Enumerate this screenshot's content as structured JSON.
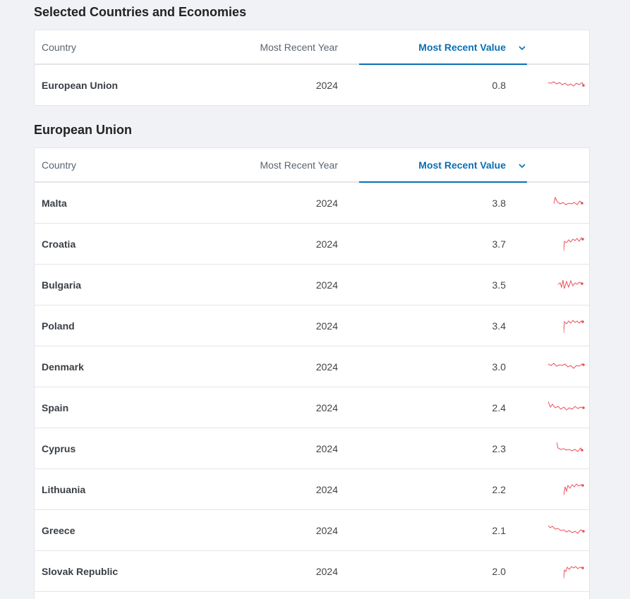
{
  "sections": [
    {
      "title": "Selected Countries and Economies",
      "headers": {
        "country": "Country",
        "year": "Most Recent Year",
        "value": "Most Recent Value"
      },
      "rows": [
        {
          "country": "European Union",
          "year": "2024",
          "value": "0.8"
        }
      ]
    },
    {
      "title": "European Union",
      "headers": {
        "country": "Country",
        "year": "Most Recent Year",
        "value": "Most Recent Value"
      },
      "rows": [
        {
          "country": "Malta",
          "year": "2024",
          "value": "3.8"
        },
        {
          "country": "Croatia",
          "year": "2024",
          "value": "3.7"
        },
        {
          "country": "Bulgaria",
          "year": "2024",
          "value": "3.5"
        },
        {
          "country": "Poland",
          "year": "2024",
          "value": "3.4"
        },
        {
          "country": "Denmark",
          "year": "2024",
          "value": "3.0"
        },
        {
          "country": "Spain",
          "year": "2024",
          "value": "2.4"
        },
        {
          "country": "Cyprus",
          "year": "2024",
          "value": "2.3"
        },
        {
          "country": "Lithuania",
          "year": "2024",
          "value": "2.2"
        },
        {
          "country": "Greece",
          "year": "2024",
          "value": "2.1"
        },
        {
          "country": "Slovak Republic",
          "year": "2024",
          "value": "2.0"
        }
      ]
    }
  ],
  "colors": {
    "accent": "#0a6fb4",
    "sparkline": "#e8505b"
  },
  "icons": {
    "sort": "chevron-down-icon"
  }
}
